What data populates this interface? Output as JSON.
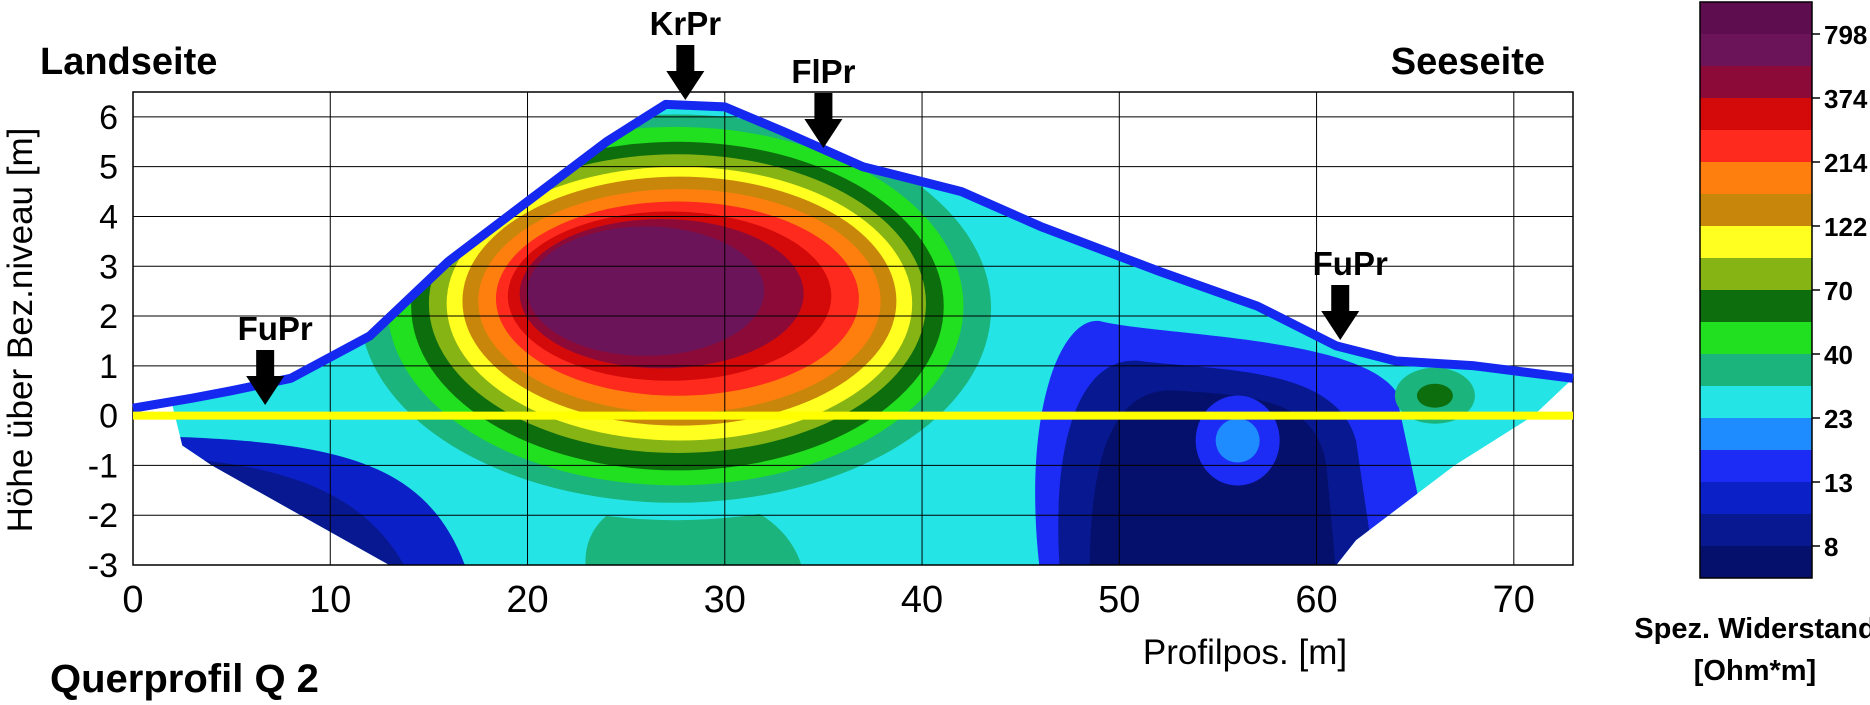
{
  "chart_data": {
    "type": "heatmap",
    "title": "Querprofil Q 2",
    "xlabel": "Profilpos. [m]",
    "ylabel": "Höhe über Bez.niveau [m]",
    "xlim": [
      0,
      73
    ],
    "ylim": [
      -3,
      6.5
    ],
    "x_ticks": [
      0,
      10,
      20,
      30,
      40,
      50,
      60,
      70
    ],
    "y_ticks": [
      6,
      5,
      4,
      3,
      2,
      1,
      0,
      -1,
      -2,
      -3
    ],
    "grid": true,
    "side_labels": {
      "left": "Landseite",
      "right": "Seeseite"
    },
    "annotations": [
      {
        "text": "FuPr",
        "x": 6.7
      },
      {
        "text": "KrPr",
        "x": 28
      },
      {
        "text": "FlPr",
        "x": 35
      },
      {
        "text": "FuPr",
        "x": 61.2
      }
    ],
    "surface_profile": [
      [
        0,
        0.15
      ],
      [
        3,
        0.35
      ],
      [
        5,
        0.5
      ],
      [
        8,
        0.75
      ],
      [
        12,
        1.6
      ],
      [
        16,
        3.1
      ],
      [
        20,
        4.3
      ],
      [
        24,
        5.5
      ],
      [
        27,
        6.25
      ],
      [
        30,
        6.2
      ],
      [
        33,
        5.7
      ],
      [
        37,
        5.0
      ],
      [
        42,
        4.5
      ],
      [
        46,
        3.8
      ],
      [
        52,
        2.9
      ],
      [
        57,
        2.2
      ],
      [
        61,
        1.4
      ],
      [
        64,
        1.1
      ],
      [
        68,
        1.0
      ],
      [
        73,
        0.75
      ]
    ],
    "reference_line_y": 0,
    "colorbar": {
      "title": "Spez. Widerstand",
      "unit": "[Ohm*m]",
      "labels": [
        "798",
        "374",
        "214",
        "122",
        "70",
        "40",
        "23",
        "13",
        "8"
      ],
      "colors": [
        "#5e0e4f",
        "#6c1459",
        "#8c0a37",
        "#d40a0a",
        "#ff2a1e",
        "#ff7f0e",
        "#c8860a",
        "#ffff20",
        "#86b414",
        "#0d6e0d",
        "#20e020",
        "#1bb47d",
        "#24e4e6",
        "#1e8cff",
        "#1c2cf4",
        "#0c20c8",
        "#081890",
        "#05106c"
      ]
    },
    "regions": [
      {
        "name": "very-high-resistivity-core",
        "value": "798",
        "x": [
          21,
          32
        ],
        "y": [
          0.9,
          3.9
        ]
      },
      {
        "name": "low-resistivity-seaward-zone",
        "value": "8",
        "x": [
          48,
          62
        ],
        "y": [
          -3,
          1.5
        ]
      }
    ]
  }
}
